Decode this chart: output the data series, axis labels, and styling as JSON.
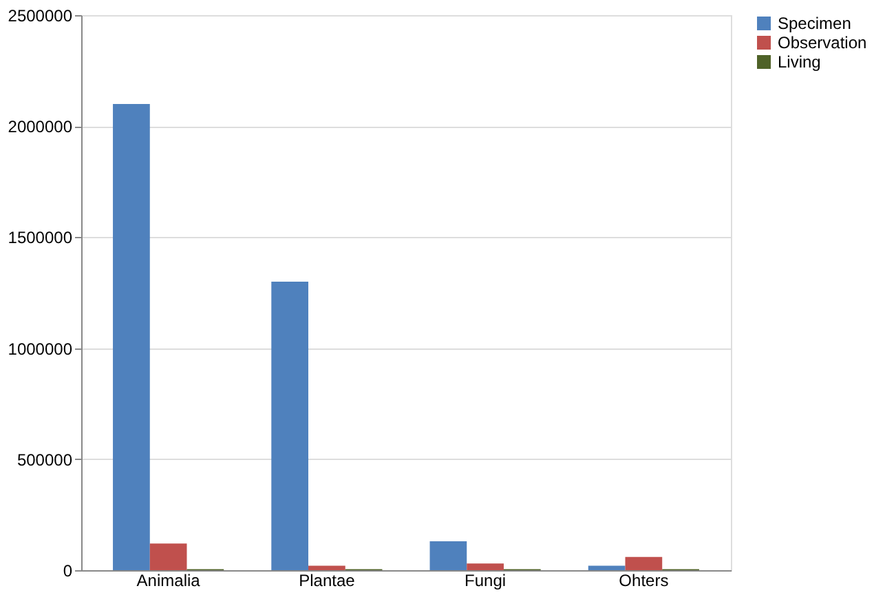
{
  "chart_data": {
    "type": "bar",
    "categories": [
      "Animalia",
      "Plantae",
      "Fungi",
      "Ohters"
    ],
    "series": [
      {
        "name": "Specimen",
        "color": "#4f81bd",
        "values": [
          2100000,
          1300000,
          130000,
          20000
        ]
      },
      {
        "name": "Observation",
        "color": "#c0504d",
        "values": [
          120000,
          20000,
          30000,
          60000
        ]
      },
      {
        "name": "Living",
        "color": "#4f6228",
        "values": [
          5000,
          5000,
          5000,
          5000
        ]
      }
    ],
    "ylim": [
      0,
      2500000
    ],
    "yticks": [
      0,
      500000,
      1000000,
      1500000,
      2000000,
      2500000
    ],
    "grid": "y",
    "legend": "right"
  }
}
